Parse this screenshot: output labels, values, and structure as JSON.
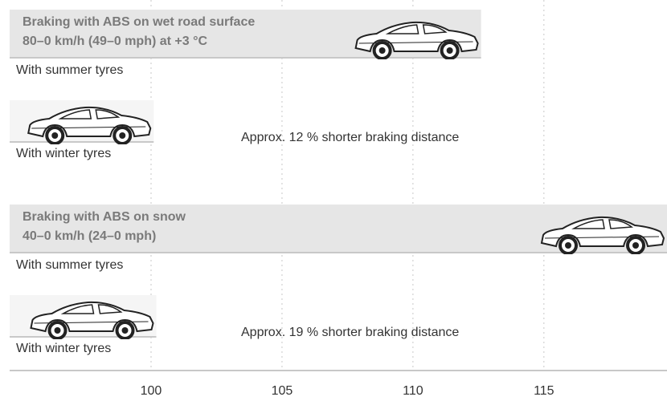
{
  "chart_data": {
    "type": "bar",
    "orientation": "horizontal",
    "xlim": [
      94.6,
      119.7
    ],
    "xticks": [
      100,
      105,
      110,
      115
    ],
    "grid": true,
    "bar_color": "#e6e6e6",
    "line_color": "#c8c8c8",
    "panels": [
      {
        "title": "Braking with ABS on wet road surface",
        "subtitle": "80–0 km/h (49–0 mph) at +3 °C",
        "categories": [
          "With summer tyres",
          "With winter tyres"
        ],
        "values": [
          112.6,
          100.1
        ],
        "annotation": "Approx. 12 % shorter braking distance"
      },
      {
        "title": "Braking with ABS on snow",
        "subtitle": "40–0 km/h (24–0 mph)",
        "categories": [
          "With summer tyres",
          "With winter tyres"
        ],
        "values": [
          119.7,
          100.2
        ],
        "annotation": "Approx. 19 % shorter braking distance"
      }
    ]
  }
}
